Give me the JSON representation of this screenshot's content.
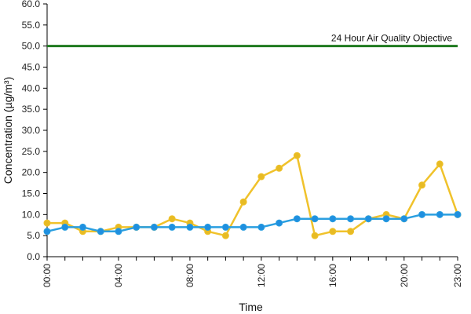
{
  "chart_data": {
    "type": "line",
    "title": "",
    "xlabel": "Time",
    "ylabel": "Concentration (µg/m³)",
    "ylim": [
      0,
      60
    ],
    "yticks": [
      "0.0",
      "5.0",
      "10.0",
      "15.0",
      "20.0",
      "25.0",
      "30.0",
      "35.0",
      "40.0",
      "45.0",
      "50.0",
      "55.0",
      "60.0"
    ],
    "x": [
      0,
      1,
      2,
      3,
      4,
      5,
      6,
      7,
      8,
      9,
      10,
      11,
      12,
      13,
      14,
      15,
      16,
      17,
      18,
      19,
      20,
      21,
      22,
      23
    ],
    "xtick_labels": [
      {
        "hour": 0,
        "label": "00:00"
      },
      {
        "hour": 4,
        "label": "04:00"
      },
      {
        "hour": 8,
        "label": "08:00"
      },
      {
        "hour": 12,
        "label": "12:00"
      },
      {
        "hour": 16,
        "label": "16:00"
      },
      {
        "hour": 20,
        "label": "20:00"
      },
      {
        "hour": 23,
        "label": "23:00"
      }
    ],
    "grid": false,
    "legend": "none",
    "series": [
      {
        "color": "#f0c22b",
        "marker_color": "#e7bb24",
        "values": [
          8,
          8,
          6,
          6,
          7,
          7,
          7,
          9,
          8,
          6,
          5,
          13,
          19,
          21,
          24,
          5,
          6,
          6,
          9,
          10,
          9,
          17,
          22,
          10
        ]
      },
      {
        "color": "#2a9fe0",
        "marker_color": "#1f8fe0",
        "values": [
          6,
          7,
          7,
          6,
          6,
          7,
          7,
          7,
          7,
          7,
          7,
          7,
          7,
          8,
          9,
          9,
          9,
          9,
          9,
          9,
          9,
          10,
          10,
          10
        ]
      }
    ],
    "reference_line": {
      "value": 50,
      "label": "24 Hour Air Quality Objective",
      "color": "#1f7a1f"
    }
  }
}
